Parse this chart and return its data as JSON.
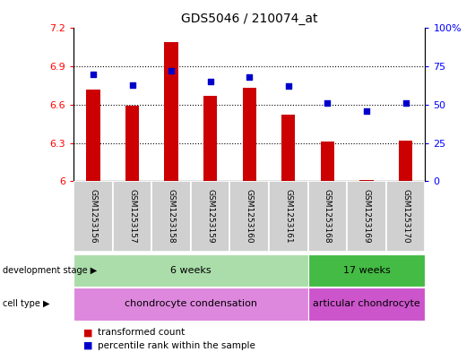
{
  "title": "GDS5046 / 210074_at",
  "samples": [
    "GSM1253156",
    "GSM1253157",
    "GSM1253158",
    "GSM1253159",
    "GSM1253160",
    "GSM1253161",
    "GSM1253168",
    "GSM1253169",
    "GSM1253170"
  ],
  "red_values": [
    6.72,
    6.59,
    7.09,
    6.67,
    6.73,
    6.52,
    6.31,
    6.01,
    6.32
  ],
  "blue_values": [
    70,
    63,
    72,
    65,
    68,
    62,
    51,
    46,
    51
  ],
  "ylim_left": [
    6.0,
    7.2
  ],
  "ylim_right": [
    0,
    100
  ],
  "yticks_left": [
    6.0,
    6.3,
    6.6,
    6.9,
    7.2
  ],
  "yticks_right": [
    0,
    25,
    50,
    75,
    100
  ],
  "ytick_labels_left": [
    "6",
    "6.3",
    "6.6",
    "6.9",
    "7.2"
  ],
  "ytick_labels_right": [
    "0",
    "25",
    "50",
    "75",
    "100%"
  ],
  "bar_color": "#cc0000",
  "dot_color": "#0000cc",
  "bar_bottom": 6.0,
  "groups": [
    {
      "label": "6 weeks",
      "start": 0,
      "end": 6,
      "color": "#aaddaa"
    },
    {
      "label": "17 weeks",
      "start": 6,
      "end": 9,
      "color": "#44bb44"
    }
  ],
  "cell_types": [
    {
      "label": "chondrocyte condensation",
      "start": 0,
      "end": 6,
      "color": "#dd88dd"
    },
    {
      "label": "articular chondrocyte",
      "start": 6,
      "end": 9,
      "color": "#cc55cc"
    }
  ],
  "dev_label": "development stage",
  "cell_label": "cell type",
  "legend_red": "transformed count",
  "legend_blue": "percentile rank within the sample",
  "xlabel_area_color": "#d0d0d0",
  "bar_width": 0.35
}
